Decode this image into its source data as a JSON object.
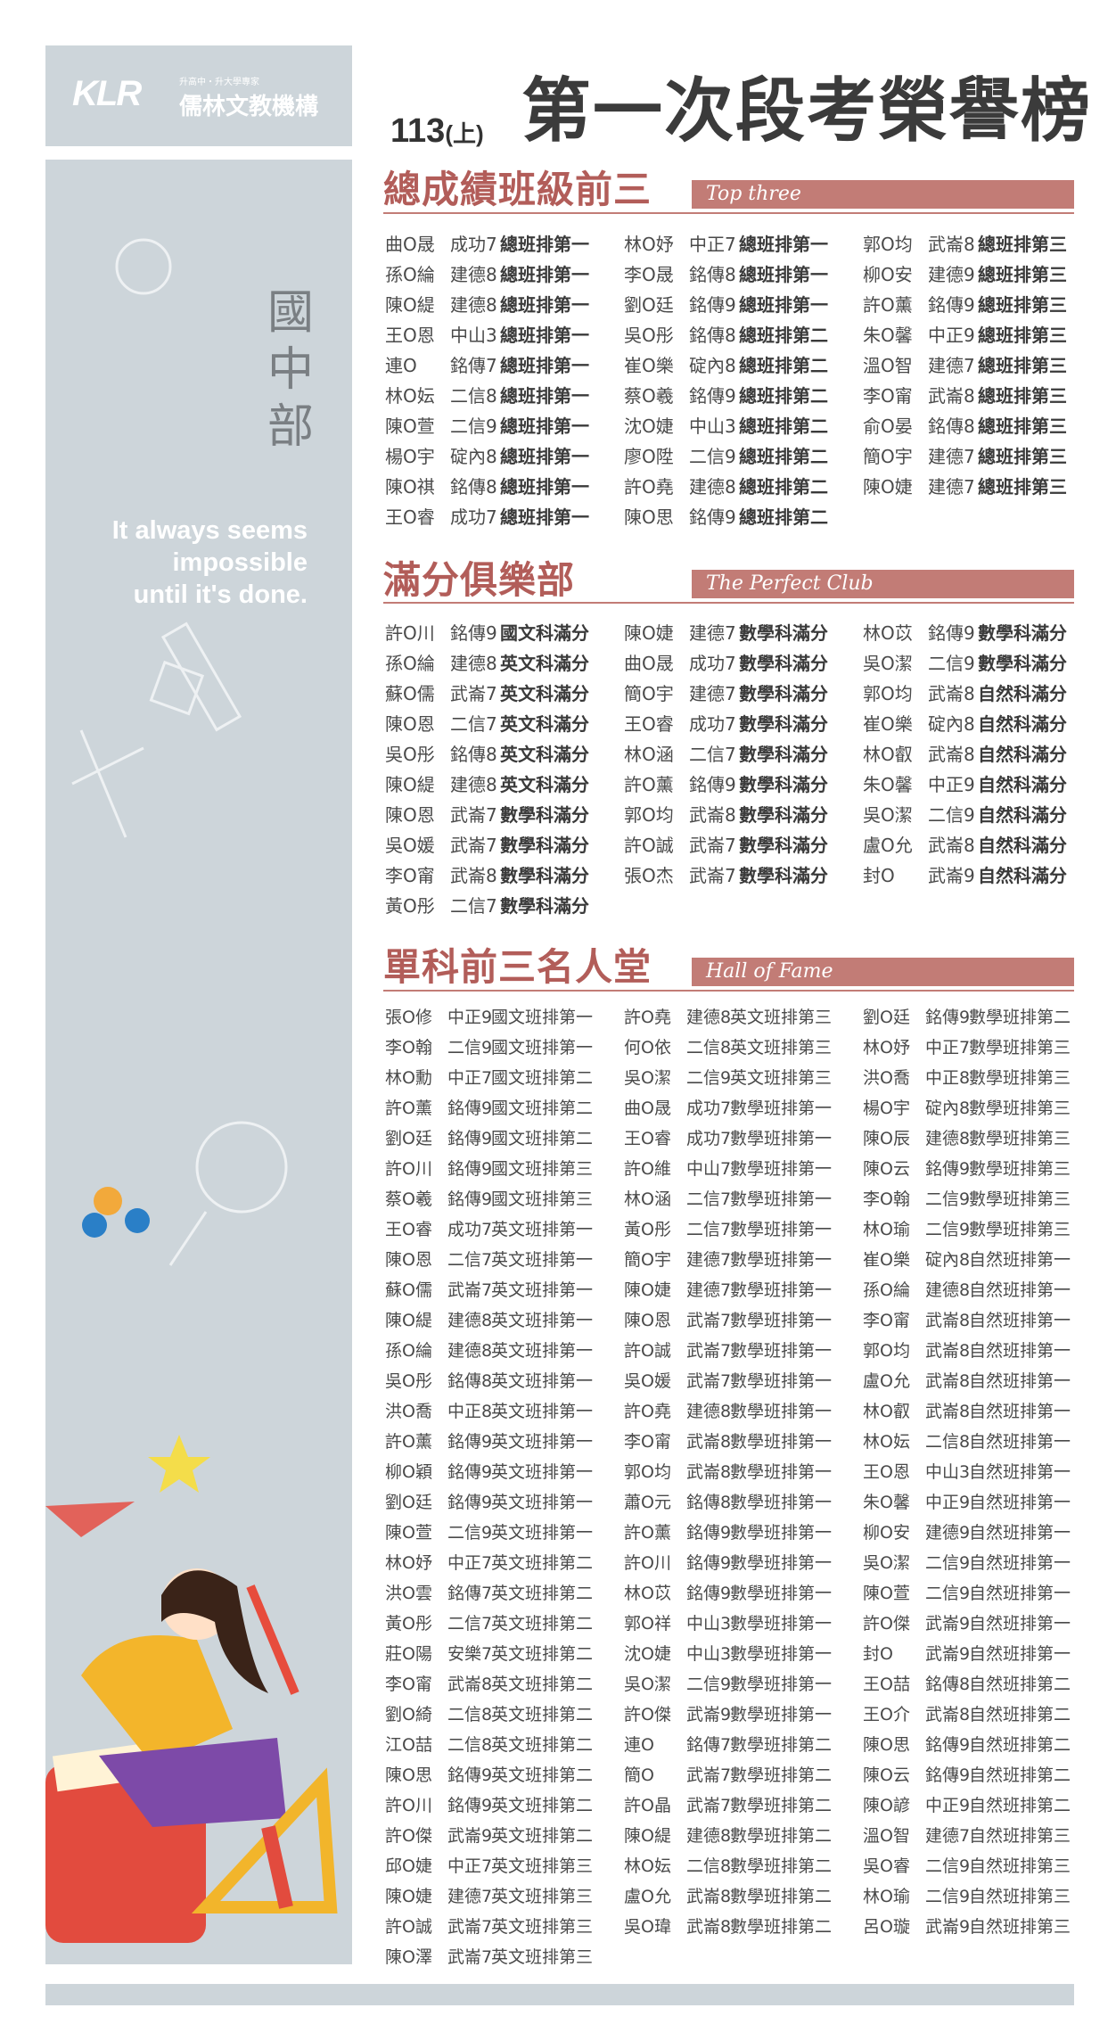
{
  "logo": {
    "mark": "KLR",
    "tagline": "升高中・升大學專家",
    "name": "儒林文教機構"
  },
  "sidebar": {
    "department": "國中部",
    "quote_lines": [
      "It always seems",
      "impossible",
      "until it's done."
    ]
  },
  "header": {
    "term": "113",
    "term_suffix": "(上)",
    "title": "第一次段考榮譽榜"
  },
  "colors": {
    "accent": "#c27c76",
    "section_title": "#b25d59",
    "panel": "#cdd5da"
  },
  "sections": {
    "top_three": {
      "title": "總成績班級前三",
      "subtitle": "Top three",
      "columns": [
        [
          {
            "name": "曲O晟",
            "school": "成功7",
            "rank": "總班排第一"
          },
          {
            "name": "孫O綸",
            "school": "建德8",
            "rank": "總班排第一"
          },
          {
            "name": "陳O緹",
            "school": "建德8",
            "rank": "總班排第一"
          },
          {
            "name": "王O恩",
            "school": "中山3",
            "rank": "總班排第一"
          },
          {
            "name": "連O",
            "school": "銘傳7",
            "rank": "總班排第一"
          },
          {
            "name": "林O妘",
            "school": "二信8",
            "rank": "總班排第一"
          },
          {
            "name": "陳O萱",
            "school": "二信9",
            "rank": "總班排第一"
          },
          {
            "name": "楊O宇",
            "school": "碇內8",
            "rank": "總班排第一"
          },
          {
            "name": "陳O祺",
            "school": "銘傳8",
            "rank": "總班排第一"
          },
          {
            "name": "王O睿",
            "school": "成功7",
            "rank": "總班排第一"
          }
        ],
        [
          {
            "name": "林O妤",
            "school": "中正7",
            "rank": "總班排第一"
          },
          {
            "name": "李O晟",
            "school": "銘傳8",
            "rank": "總班排第一"
          },
          {
            "name": "劉O廷",
            "school": "銘傳9",
            "rank": "總班排第一"
          },
          {
            "name": "吳O彤",
            "school": "銘傳8",
            "rank": "總班排第二"
          },
          {
            "name": "崔O樂",
            "school": "碇內8",
            "rank": "總班排第二"
          },
          {
            "name": "蔡O羲",
            "school": "銘傳9",
            "rank": "總班排第二"
          },
          {
            "name": "沈O婕",
            "school": "中山3",
            "rank": "總班排第二"
          },
          {
            "name": "廖O陞",
            "school": "二信9",
            "rank": "總班排第二"
          },
          {
            "name": "許O堯",
            "school": "建德8",
            "rank": "總班排第二"
          },
          {
            "name": "陳O思",
            "school": "銘傳9",
            "rank": "總班排第二"
          }
        ],
        [
          {
            "name": "郭O均",
            "school": "武崙8",
            "rank": "總班排第三"
          },
          {
            "name": "柳O安",
            "school": "建德9",
            "rank": "總班排第三"
          },
          {
            "name": "許O薰",
            "school": "銘傳9",
            "rank": "總班排第三"
          },
          {
            "name": "朱O馨",
            "school": "中正9",
            "rank": "總班排第三"
          },
          {
            "name": "溫O智",
            "school": "建德7",
            "rank": "總班排第三"
          },
          {
            "name": "李O甯",
            "school": "武崙8",
            "rank": "總班排第三"
          },
          {
            "name": "俞O晏",
            "school": "銘傳8",
            "rank": "總班排第三"
          },
          {
            "name": "簡O宇",
            "school": "建德7",
            "rank": "總班排第三"
          },
          {
            "name": "陳O婕",
            "school": "建德7",
            "rank": "總班排第三"
          }
        ]
      ]
    },
    "perfect_club": {
      "title": "滿分俱樂部",
      "subtitle": "The Perfect Club",
      "columns": [
        [
          {
            "name": "許O川",
            "school": "銘傳9",
            "rank": "國文科滿分"
          },
          {
            "name": "孫O綸",
            "school": "建德8",
            "rank": "英文科滿分"
          },
          {
            "name": "蘇O儒",
            "school": "武崙7",
            "rank": "英文科滿分"
          },
          {
            "name": "陳O恩",
            "school": "二信7",
            "rank": "英文科滿分"
          },
          {
            "name": "吳O彤",
            "school": "銘傳8",
            "rank": "英文科滿分"
          },
          {
            "name": "陳O緹",
            "school": "建德8",
            "rank": "英文科滿分"
          },
          {
            "name": "陳O恩",
            "school": "武崙7",
            "rank": "數學科滿分"
          },
          {
            "name": "吳O媛",
            "school": "武崙7",
            "rank": "數學科滿分"
          },
          {
            "name": "李O甯",
            "school": "武崙8",
            "rank": "數學科滿分"
          },
          {
            "name": "黃O彤",
            "school": "二信7",
            "rank": "數學科滿分"
          }
        ],
        [
          {
            "name": "陳O婕",
            "school": "建德7",
            "rank": "數學科滿分"
          },
          {
            "name": "曲O晟",
            "school": "成功7",
            "rank": "數學科滿分"
          },
          {
            "name": "簡O宇",
            "school": "建德7",
            "rank": "數學科滿分"
          },
          {
            "name": "王O睿",
            "school": "成功7",
            "rank": "數學科滿分"
          },
          {
            "name": "林O涵",
            "school": "二信7",
            "rank": "數學科滿分"
          },
          {
            "name": "許O薰",
            "school": "銘傳9",
            "rank": "數學科滿分"
          },
          {
            "name": "郭O均",
            "school": "武崙8",
            "rank": "數學科滿分"
          },
          {
            "name": "許O誠",
            "school": "武崙7",
            "rank": "數學科滿分"
          },
          {
            "name": "張O杰",
            "school": "武崙7",
            "rank": "數學科滿分"
          }
        ],
        [
          {
            "name": "林O苡",
            "school": "銘傳9",
            "rank": "數學科滿分"
          },
          {
            "name": "吳O潔",
            "school": "二信9",
            "rank": "數學科滿分"
          },
          {
            "name": "郭O均",
            "school": "武崙8",
            "rank": "自然科滿分"
          },
          {
            "name": "崔O樂",
            "school": "碇內8",
            "rank": "自然科滿分"
          },
          {
            "name": "林O叡",
            "school": "武崙8",
            "rank": "自然科滿分"
          },
          {
            "name": "朱O馨",
            "school": "中正9",
            "rank": "自然科滿分"
          },
          {
            "name": "吳O潔",
            "school": "二信9",
            "rank": "自然科滿分"
          },
          {
            "name": "盧O允",
            "school": "武崙8",
            "rank": "自然科滿分"
          },
          {
            "name": "封O",
            "school": "武崙9",
            "rank": "自然科滿分"
          }
        ]
      ]
    },
    "hall_of_fame": {
      "title": "單科前三名人堂",
      "subtitle": "Hall of Fame",
      "columns": [
        [
          {
            "name": "張O修",
            "school": "中正9",
            "rank": "國文班排第一"
          },
          {
            "name": "李O翰",
            "school": "二信9",
            "rank": "國文班排第一"
          },
          {
            "name": "林O勳",
            "school": "中正7",
            "rank": "國文班排第二"
          },
          {
            "name": "許O薰",
            "school": "銘傳9",
            "rank": "國文班排第二"
          },
          {
            "name": "劉O廷",
            "school": "銘傳9",
            "rank": "國文班排第二"
          },
          {
            "name": "許O川",
            "school": "銘傳9",
            "rank": "國文班排第三"
          },
          {
            "name": "蔡O羲",
            "school": "銘傳9",
            "rank": "國文班排第三"
          },
          {
            "name": "王O睿",
            "school": "成功7",
            "rank": "英文班排第一"
          },
          {
            "name": "陳O恩",
            "school": "二信7",
            "rank": "英文班排第一"
          },
          {
            "name": "蘇O儒",
            "school": "武崙7",
            "rank": "英文班排第一"
          },
          {
            "name": "陳O緹",
            "school": "建德8",
            "rank": "英文班排第一"
          },
          {
            "name": "孫O綸",
            "school": "建德8",
            "rank": "英文班排第一"
          },
          {
            "name": "吳O彤",
            "school": "銘傳8",
            "rank": "英文班排第一"
          },
          {
            "name": "洪O喬",
            "school": "中正8",
            "rank": "英文班排第一"
          },
          {
            "name": "許O薰",
            "school": "銘傳9",
            "rank": "英文班排第一"
          },
          {
            "name": "柳O穎",
            "school": "銘傳9",
            "rank": "英文班排第一"
          },
          {
            "name": "劉O廷",
            "school": "銘傳9",
            "rank": "英文班排第一"
          },
          {
            "name": "陳O萱",
            "school": "二信9",
            "rank": "英文班排第一"
          },
          {
            "name": "林O妤",
            "school": "中正7",
            "rank": "英文班排第二"
          },
          {
            "name": "洪O雲",
            "school": "銘傳7",
            "rank": "英文班排第二"
          },
          {
            "name": "黃O彤",
            "school": "二信7",
            "rank": "英文班排第二"
          },
          {
            "name": "莊O陽",
            "school": "安樂7",
            "rank": "英文班排第二"
          },
          {
            "name": "李O甯",
            "school": "武崙8",
            "rank": "英文班排第二"
          },
          {
            "name": "劉O綺",
            "school": "二信8",
            "rank": "英文班排第二"
          },
          {
            "name": "江O喆",
            "school": "二信8",
            "rank": "英文班排第二"
          },
          {
            "name": "陳O思",
            "school": "銘傳9",
            "rank": "英文班排第二"
          },
          {
            "name": "許O川",
            "school": "銘傳9",
            "rank": "英文班排第二"
          },
          {
            "name": "許O傑",
            "school": "武崙9",
            "rank": "英文班排第二"
          },
          {
            "name": "邱O婕",
            "school": "中正7",
            "rank": "英文班排第三"
          },
          {
            "name": "陳O婕",
            "school": "建德7",
            "rank": "英文班排第三"
          },
          {
            "name": "許O誠",
            "school": "武崙7",
            "rank": "英文班排第三"
          },
          {
            "name": "陳O澤",
            "school": "武崙7",
            "rank": "英文班排第三"
          }
        ],
        [
          {
            "name": "許O堯",
            "school": "建德8",
            "rank": "英文班排第三"
          },
          {
            "name": "何O依",
            "school": "二信8",
            "rank": "英文班排第三"
          },
          {
            "name": "吳O潔",
            "school": "二信9",
            "rank": "英文班排第三"
          },
          {
            "name": "曲O晟",
            "school": "成功7",
            "rank": "數學班排第一"
          },
          {
            "name": "王O睿",
            "school": "成功7",
            "rank": "數學班排第一"
          },
          {
            "name": "許O維",
            "school": "中山7",
            "rank": "數學班排第一"
          },
          {
            "name": "林O涵",
            "school": "二信7",
            "rank": "數學班排第一"
          },
          {
            "name": "黃O彤",
            "school": "二信7",
            "rank": "數學班排第一"
          },
          {
            "name": "簡O宇",
            "school": "建德7",
            "rank": "數學班排第一"
          },
          {
            "name": "陳O婕",
            "school": "建德7",
            "rank": "數學班排第一"
          },
          {
            "name": "陳O恩",
            "school": "武崙7",
            "rank": "數學班排第一"
          },
          {
            "name": "許O誠",
            "school": "武崙7",
            "rank": "數學班排第一"
          },
          {
            "name": "吳O媛",
            "school": "武崙7",
            "rank": "數學班排第一"
          },
          {
            "name": "許O堯",
            "school": "建德8",
            "rank": "數學班排第一"
          },
          {
            "name": "李O甯",
            "school": "武崙8",
            "rank": "數學班排第一"
          },
          {
            "name": "郭O均",
            "school": "武崙8",
            "rank": "數學班排第一"
          },
          {
            "name": "蕭O元",
            "school": "銘傳8",
            "rank": "數學班排第一"
          },
          {
            "name": "許O薰",
            "school": "銘傳9",
            "rank": "數學班排第一"
          },
          {
            "name": "許O川",
            "school": "銘傳9",
            "rank": "數學班排第一"
          },
          {
            "name": "林O苡",
            "school": "銘傳9",
            "rank": "數學班排第一"
          },
          {
            "name": "郭O祥",
            "school": "中山3",
            "rank": "數學班排第一"
          },
          {
            "name": "沈O婕",
            "school": "中山3",
            "rank": "數學班排第一"
          },
          {
            "name": "吳O潔",
            "school": "二信9",
            "rank": "數學班排第一"
          },
          {
            "name": "許O傑",
            "school": "武崙9",
            "rank": "數學班排第一"
          },
          {
            "name": "連O",
            "school": "銘傳7",
            "rank": "數學班排第二"
          },
          {
            "name": "簡O",
            "school": "武崙7",
            "rank": "數學班排第二"
          },
          {
            "name": "許O晶",
            "school": "武崙7",
            "rank": "數學班排第二"
          },
          {
            "name": "陳O緹",
            "school": "建德8",
            "rank": "數學班排第二"
          },
          {
            "name": "林O妘",
            "school": "二信8",
            "rank": "數學班排第二"
          },
          {
            "name": "盧O允",
            "school": "武崙8",
            "rank": "數學班排第二"
          },
          {
            "name": "吳O瑋",
            "school": "武崙8",
            "rank": "數學班排第二"
          }
        ],
        [
          {
            "name": "劉O廷",
            "school": "銘傳9",
            "rank": "數學班排第二"
          },
          {
            "name": "林O妤",
            "school": "中正7",
            "rank": "數學班排第三"
          },
          {
            "name": "洪O喬",
            "school": "中正8",
            "rank": "數學班排第三"
          },
          {
            "name": "楊O宇",
            "school": "碇內8",
            "rank": "數學班排第三"
          },
          {
            "name": "陳O辰",
            "school": "建德8",
            "rank": "數學班排第三"
          },
          {
            "name": "陳O云",
            "school": "銘傳9",
            "rank": "數學班排第三"
          },
          {
            "name": "李O翰",
            "school": "二信9",
            "rank": "數學班排第三"
          },
          {
            "name": "林O瑜",
            "school": "二信9",
            "rank": "數學班排第三"
          },
          {
            "name": "崔O樂",
            "school": "碇內8",
            "rank": "自然班排第一"
          },
          {
            "name": "孫O綸",
            "school": "建德8",
            "rank": "自然班排第一"
          },
          {
            "name": "李O甯",
            "school": "武崙8",
            "rank": "自然班排第一"
          },
          {
            "name": "郭O均",
            "school": "武崙8",
            "rank": "自然班排第一"
          },
          {
            "name": "盧O允",
            "school": "武崙8",
            "rank": "自然班排第一"
          },
          {
            "name": "林O叡",
            "school": "武崙8",
            "rank": "自然班排第一"
          },
          {
            "name": "林O妘",
            "school": "二信8",
            "rank": "自然班排第一"
          },
          {
            "name": "王O恩",
            "school": "中山3",
            "rank": "自然班排第一"
          },
          {
            "name": "朱O馨",
            "school": "中正9",
            "rank": "自然班排第一"
          },
          {
            "name": "柳O安",
            "school": "建德9",
            "rank": "自然班排第一"
          },
          {
            "name": "吳O潔",
            "school": "二信9",
            "rank": "自然班排第一"
          },
          {
            "name": "陳O萱",
            "school": "二信9",
            "rank": "自然班排第一"
          },
          {
            "name": "許O傑",
            "school": "武崙9",
            "rank": "自然班排第一"
          },
          {
            "name": "封O",
            "school": "武崙9",
            "rank": "自然班排第一"
          },
          {
            "name": "王O喆",
            "school": "銘傳8",
            "rank": "自然班排第二"
          },
          {
            "name": "王O介",
            "school": "武崙8",
            "rank": "自然班排第二"
          },
          {
            "name": "陳O思",
            "school": "銘傳9",
            "rank": "自然班排第二"
          },
          {
            "name": "陳O云",
            "school": "銘傳9",
            "rank": "自然班排第二"
          },
          {
            "name": "陳O諺",
            "school": "中正9",
            "rank": "自然班排第二"
          },
          {
            "name": "溫O智",
            "school": "建德7",
            "rank": "自然班排第三"
          },
          {
            "name": "吳O睿",
            "school": "二信9",
            "rank": "自然班排第三"
          },
          {
            "name": "林O瑜",
            "school": "二信9",
            "rank": "自然班排第三"
          },
          {
            "name": "呂O璇",
            "school": "武崙9",
            "rank": "自然班排第三"
          }
        ]
      ]
    }
  }
}
